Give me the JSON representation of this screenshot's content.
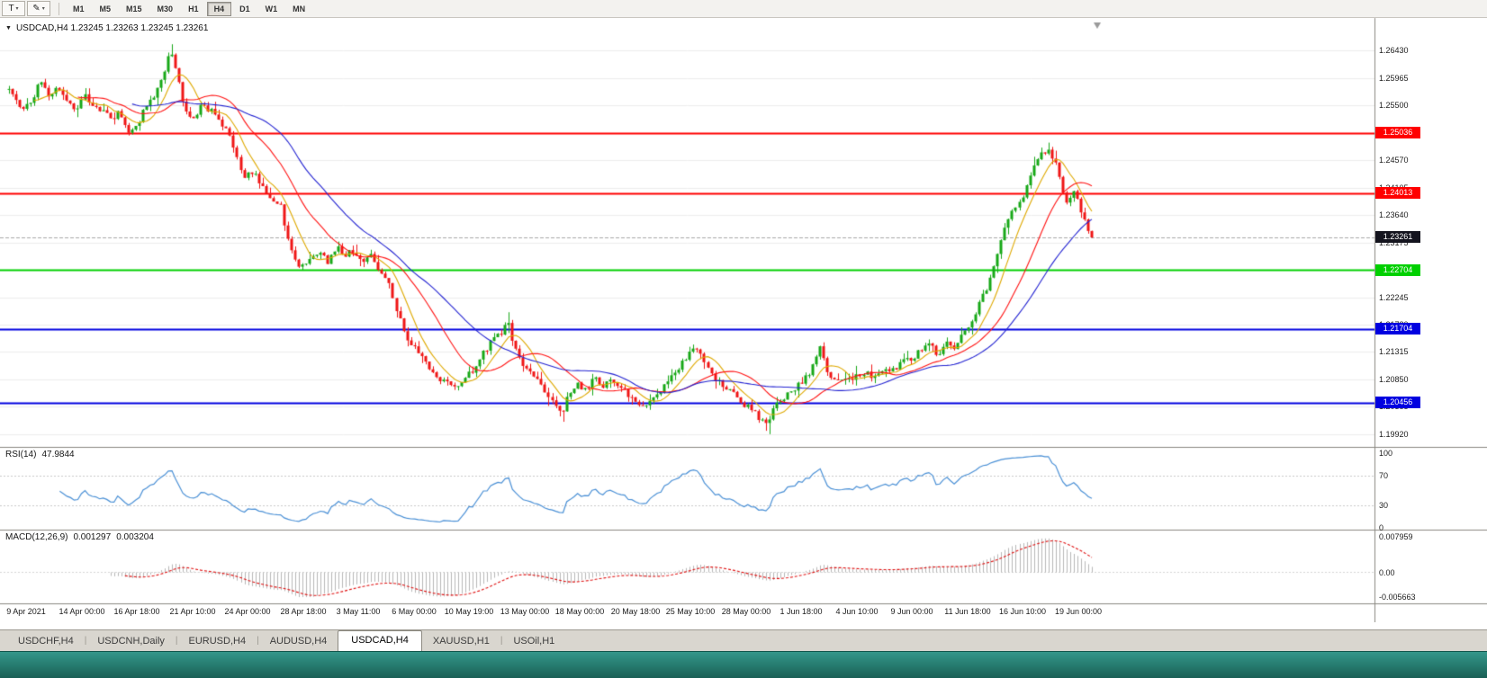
{
  "toolbar": {
    "tools": [
      {
        "name": "text-tool",
        "glyph": "T"
      },
      {
        "name": "draw-tool",
        "glyph": "✎"
      }
    ],
    "caret_glyph": "▾",
    "timeframes": [
      "M1",
      "M5",
      "M15",
      "M30",
      "H1",
      "H4",
      "D1",
      "W1",
      "MN"
    ],
    "active_timeframe": "H4"
  },
  "chart": {
    "collapse_glyph": "▼",
    "title": "USDCAD,H4 1.23245 1.23263 1.23245 1.23261"
  },
  "tabs_separator": "|",
  "tabs": [
    {
      "label": "USDCHF,H4",
      "active": false
    },
    {
      "label": "USDCNH,Daily",
      "active": false
    },
    {
      "label": "EURUSD,H4",
      "active": false
    },
    {
      "label": "AUDUSD,H4",
      "active": false
    },
    {
      "label": "USDCAD,H4",
      "active": true
    },
    {
      "label": "XAUUSD,H1",
      "active": false
    },
    {
      "label": "USOil,H1",
      "active": false
    }
  ],
  "chart_data": {
    "type": "candlestick",
    "symbol": "USDCAD",
    "timeframe": "H4",
    "x_labels": [
      "9 Apr 2021",
      "14 Apr 00:00",
      "16 Apr 18:00",
      "21 Apr 10:00",
      "24 Apr 00:00",
      "28 Apr 18:00",
      "3 May 11:00",
      "6 May 00:00",
      "10 May 19:00",
      "13 May 00:00",
      "18 May 00:00",
      "20 May 18:00",
      "25 May 10:00",
      "28 May 00:00",
      "1 Jun 18:00",
      "4 Jun 10:00",
      "9 Jun 00:00",
      "11 Jun 18:00",
      "16 Jun 10:00",
      "19 Jun 00:00"
    ],
    "y_ticks": [
      "1.26430",
      "1.25965",
      "1.25500",
      "1.25035",
      "1.24570",
      "1.24105",
      "1.23640",
      "1.23175",
      "1.22710",
      "1.22245",
      "1.21780",
      "1.21315",
      "1.20850",
      "1.20385",
      "1.19920"
    ],
    "price_range": [
      1.1978,
      1.2665
    ],
    "candle_count": 300,
    "seed": 11,
    "noise": 0.0011,
    "last_close": 1.23261,
    "candle_colors": {
      "up": "#17a817",
      "down": "#f01515"
    },
    "moving_averages": [
      {
        "period": 8,
        "color": "#dfa900"
      },
      {
        "period": 20,
        "color": "#ff1414"
      },
      {
        "period": 35,
        "color": "#2424d2"
      }
    ],
    "hlines": [
      {
        "price": 1.25036,
        "label": "1.25036",
        "color": "#ff0000",
        "width": 1.8
      },
      {
        "price": 1.24013,
        "label": "1.24013",
        "color": "#ff0000",
        "width": 1.8
      },
      {
        "price": 1.22704,
        "label": "1.22704",
        "color": "#00d000",
        "width": 2.2
      },
      {
        "price": 1.21704,
        "label": "1.21704",
        "color": "#0000e0",
        "width": 1.8
      },
      {
        "price": 1.20456,
        "label": "1.20456",
        "color": "#0000e0",
        "width": 1.8
      }
    ],
    "current_price": {
      "value": 1.23261,
      "label": "1.23261",
      "color": "#14141e"
    },
    "waypoints": [
      [
        0.0,
        1.2578
      ],
      [
        0.008,
        1.2556
      ],
      [
        0.014,
        1.2542
      ],
      [
        0.022,
        1.2562
      ],
      [
        0.03,
        1.2595
      ],
      [
        0.038,
        1.2566
      ],
      [
        0.046,
        1.2582
      ],
      [
        0.054,
        1.2558
      ],
      [
        0.062,
        1.2545
      ],
      [
        0.07,
        1.2568
      ],
      [
        0.078,
        1.2548
      ],
      [
        0.086,
        1.254
      ],
      [
        0.094,
        1.2528
      ],
      [
        0.102,
        1.2538
      ],
      [
        0.11,
        1.2505
      ],
      [
        0.118,
        1.2515
      ],
      [
        0.126,
        1.255
      ],
      [
        0.134,
        1.2565
      ],
      [
        0.142,
        1.26
      ],
      [
        0.15,
        1.2645
      ],
      [
        0.156,
        1.2595
      ],
      [
        0.163,
        1.2542
      ],
      [
        0.17,
        1.2528
      ],
      [
        0.178,
        1.255
      ],
      [
        0.186,
        1.2542
      ],
      [
        0.194,
        1.2528
      ],
      [
        0.202,
        1.2505
      ],
      [
        0.21,
        1.2462
      ],
      [
        0.218,
        1.2428
      ],
      [
        0.226,
        1.244
      ],
      [
        0.234,
        1.2412
      ],
      [
        0.242,
        1.2395
      ],
      [
        0.25,
        1.2385
      ],
      [
        0.256,
        1.2335
      ],
      [
        0.262,
        1.2295
      ],
      [
        0.27,
        1.2275
      ],
      [
        0.278,
        1.229
      ],
      [
        0.286,
        1.2305
      ],
      [
        0.294,
        1.2282
      ],
      [
        0.302,
        1.231
      ],
      [
        0.31,
        1.2295
      ],
      [
        0.318,
        1.2305
      ],
      [
        0.326,
        1.2288
      ],
      [
        0.334,
        1.2295
      ],
      [
        0.342,
        1.227
      ],
      [
        0.35,
        1.2255
      ],
      [
        0.358,
        1.2205
      ],
      [
        0.366,
        1.216
      ],
      [
        0.374,
        1.214
      ],
      [
        0.382,
        1.2125
      ],
      [
        0.39,
        1.2098
      ],
      [
        0.398,
        1.2085
      ],
      [
        0.406,
        1.2078
      ],
      [
        0.414,
        1.2068
      ],
      [
        0.422,
        1.209
      ],
      [
        0.43,
        1.2105
      ],
      [
        0.438,
        1.2128
      ],
      [
        0.446,
        1.2148
      ],
      [
        0.456,
        1.2165
      ],
      [
        0.461,
        1.219
      ],
      [
        0.466,
        1.214
      ],
      [
        0.474,
        1.2115
      ],
      [
        0.482,
        1.21
      ],
      [
        0.49,
        1.2078
      ],
      [
        0.498,
        1.206
      ],
      [
        0.506,
        1.2042
      ],
      [
        0.511,
        1.2028
      ],
      [
        0.516,
        1.206
      ],
      [
        0.524,
        1.2078
      ],
      [
        0.532,
        1.2065
      ],
      [
        0.54,
        1.2088
      ],
      [
        0.548,
        1.2075
      ],
      [
        0.556,
        1.209
      ],
      [
        0.564,
        1.2072
      ],
      [
        0.572,
        1.2058
      ],
      [
        0.58,
        1.2045
      ],
      [
        0.588,
        1.2035
      ],
      [
        0.596,
        1.2052
      ],
      [
        0.604,
        1.2068
      ],
      [
        0.612,
        1.2088
      ],
      [
        0.62,
        1.2108
      ],
      [
        0.628,
        1.2128
      ],
      [
        0.636,
        1.2138
      ],
      [
        0.644,
        1.211
      ],
      [
        0.652,
        1.2085
      ],
      [
        0.66,
        1.2072
      ],
      [
        0.668,
        1.2062
      ],
      [
        0.676,
        1.2048
      ],
      [
        0.684,
        1.2035
      ],
      [
        0.692,
        1.2022
      ],
      [
        0.7,
        1.2008
      ],
      [
        0.706,
        1.2035
      ],
      [
        0.714,
        1.2052
      ],
      [
        0.722,
        1.2065
      ],
      [
        0.73,
        1.2078
      ],
      [
        0.738,
        1.209
      ],
      [
        0.745,
        1.2125
      ],
      [
        0.75,
        1.2138
      ],
      [
        0.756,
        1.2095
      ],
      [
        0.764,
        1.208
      ],
      [
        0.772,
        1.2092
      ],
      [
        0.78,
        1.2085
      ],
      [
        0.788,
        1.2098
      ],
      [
        0.796,
        1.209
      ],
      [
        0.804,
        1.2102
      ],
      [
        0.812,
        1.2095
      ],
      [
        0.82,
        1.2105
      ],
      [
        0.828,
        1.2118
      ],
      [
        0.836,
        1.2125
      ],
      [
        0.844,
        1.214
      ],
      [
        0.852,
        1.2148
      ],
      [
        0.858,
        1.2122
      ],
      [
        0.866,
        1.2152
      ],
      [
        0.874,
        1.214
      ],
      [
        0.882,
        1.2162
      ],
      [
        0.89,
        1.2188
      ],
      [
        0.898,
        1.2218
      ],
      [
        0.906,
        1.2252
      ],
      [
        0.914,
        1.2305
      ],
      [
        0.922,
        1.2352
      ],
      [
        0.93,
        1.2382
      ],
      [
        0.938,
        1.24
      ],
      [
        0.946,
        1.2442
      ],
      [
        0.954,
        1.2468
      ],
      [
        0.96,
        1.2478
      ],
      [
        0.966,
        1.2452
      ],
      [
        0.972,
        1.2408
      ],
      [
        0.978,
        1.2385
      ],
      [
        0.984,
        1.2402
      ],
      [
        0.99,
        1.2372
      ],
      [
        0.995,
        1.2348
      ],
      [
        1.0,
        1.2326
      ]
    ],
    "extremes": [
      {
        "t": 0.15,
        "high": 1.2654
      },
      {
        "t": 0.461,
        "high": 1.2199
      },
      {
        "t": 0.511,
        "low": 1.2013
      },
      {
        "t": 0.702,
        "low": 1.1992
      },
      {
        "t": 0.96,
        "high": 1.2487
      }
    ],
    "rsi": {
      "label": "RSI(14)",
      "value": "47.9844",
      "period": 14,
      "color": "#4a90d6",
      "levels": [
        "100",
        "70",
        "30",
        "0"
      ],
      "range": [
        0,
        100
      ]
    },
    "macd": {
      "label": "MACD(12,26,9)",
      "values": [
        "0.001297",
        "0.003204"
      ],
      "fast": 12,
      "slow": 26,
      "signal": 9,
      "hist_color": "#b7b7b7",
      "signal_color": "#e01010",
      "ticks": [
        "0.007959",
        "0.00",
        "-0.005663"
      ],
      "range": [
        -0.005663,
        0.007959
      ]
    }
  }
}
